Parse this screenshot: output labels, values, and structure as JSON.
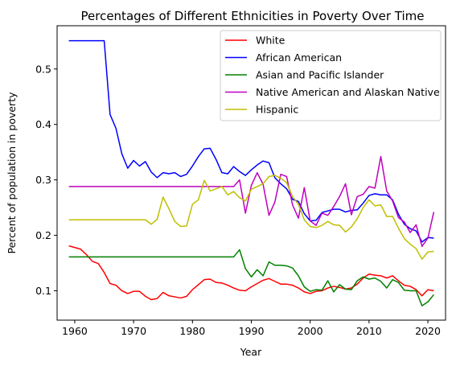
{
  "chart_data": {
    "type": "line",
    "title": "Percentages of Different Ethnicities in Poverty Over Time",
    "xlabel": "Year",
    "ylabel": "Percent of population in poverty",
    "xlim": [
      1957,
      2023
    ],
    "ylim": [
      0.047,
      0.578
    ],
    "xticks": [
      1960,
      1970,
      1980,
      1990,
      2000,
      2010,
      2020
    ],
    "yticks": [
      0.1,
      0.2,
      0.3,
      0.4,
      0.5
    ],
    "grid": false,
    "legend_position": "top-right",
    "series": [
      {
        "name": "White",
        "color": "#ff0000",
        "x": [
          1959,
          1961,
          1962,
          1963,
          1964,
          1965,
          1966,
          1967,
          1968,
          1969,
          1970,
          1971,
          1972,
          1973,
          1974,
          1975,
          1976,
          1977,
          1978,
          1979,
          1980,
          1981,
          1982,
          1983,
          1984,
          1985,
          1986,
          1987,
          1988,
          1989,
          1990,
          1991,
          1992,
          1993,
          1994,
          1995,
          1996,
          1997,
          1998,
          1999,
          2000,
          2001,
          2002,
          2003,
          2004,
          2005,
          2006,
          2007,
          2008,
          2009,
          2010,
          2011,
          2012,
          2013,
          2014,
          2015,
          2016,
          2017,
          2018,
          2019,
          2020,
          2021
        ],
        "y": [
          0.181,
          0.175,
          0.165,
          0.153,
          0.149,
          0.133,
          0.113,
          0.11,
          0.1,
          0.095,
          0.099,
          0.099,
          0.09,
          0.084,
          0.086,
          0.097,
          0.091,
          0.089,
          0.087,
          0.09,
          0.102,
          0.111,
          0.12,
          0.121,
          0.115,
          0.114,
          0.11,
          0.105,
          0.101,
          0.1,
          0.107,
          0.113,
          0.119,
          0.122,
          0.117,
          0.112,
          0.112,
          0.11,
          0.105,
          0.098,
          0.095,
          0.099,
          0.1,
          0.105,
          0.108,
          0.106,
          0.103,
          0.105,
          0.112,
          0.123,
          0.13,
          0.128,
          0.127,
          0.123,
          0.127,
          0.118,
          0.11,
          0.108,
          0.102,
          0.091,
          0.102,
          0.1
        ]
      },
      {
        "name": "African American",
        "color": "#0000ff",
        "x": [
          1959,
          1960,
          1961,
          1962,
          1963,
          1964,
          1965,
          1966,
          1967,
          1968,
          1969,
          1970,
          1971,
          1972,
          1973,
          1974,
          1975,
          1976,
          1977,
          1978,
          1979,
          1980,
          1981,
          1982,
          1983,
          1984,
          1985,
          1986,
          1987,
          1988,
          1989,
          1990,
          1991,
          1992,
          1993,
          1994,
          1995,
          1996,
          1997,
          1998,
          1999,
          2000,
          2001,
          2002,
          2003,
          2004,
          2005,
          2006,
          2007,
          2008,
          2009,
          2010,
          2011,
          2012,
          2013,
          2014,
          2015,
          2016,
          2017,
          2018,
          2019,
          2020,
          2021
        ],
        "y": [
          0.551,
          0.551,
          0.551,
          0.551,
          0.551,
          0.551,
          0.551,
          0.418,
          0.393,
          0.347,
          0.321,
          0.335,
          0.325,
          0.333,
          0.314,
          0.304,
          0.313,
          0.311,
          0.313,
          0.306,
          0.31,
          0.325,
          0.342,
          0.356,
          0.357,
          0.337,
          0.313,
          0.311,
          0.324,
          0.315,
          0.308,
          0.318,
          0.327,
          0.334,
          0.331,
          0.304,
          0.293,
          0.284,
          0.265,
          0.261,
          0.239,
          0.226,
          0.227,
          0.241,
          0.244,
          0.247,
          0.247,
          0.242,
          0.245,
          0.246,
          0.258,
          0.272,
          0.275,
          0.273,
          0.273,
          0.264,
          0.238,
          0.22,
          0.212,
          0.208,
          0.188,
          0.196,
          0.195
        ]
      },
      {
        "name": "Asian and Pacific Islander",
        "color": "#008000",
        "x": [
          1959,
          1987,
          1988,
          1989,
          1990,
          1991,
          1992,
          1993,
          1994,
          1995,
          1996,
          1997,
          1998,
          1999,
          2000,
          2001,
          2002,
          2003,
          2004,
          2005,
          2006,
          2007,
          2008,
          2009,
          2010,
          2011,
          2012,
          2013,
          2014,
          2015,
          2016,
          2017,
          2018,
          2019,
          2020,
          2021
        ],
        "y": [
          0.161,
          0.161,
          0.174,
          0.14,
          0.125,
          0.138,
          0.127,
          0.152,
          0.146,
          0.146,
          0.145,
          0.141,
          0.127,
          0.107,
          0.099,
          0.102,
          0.101,
          0.118,
          0.098,
          0.111,
          0.103,
          0.102,
          0.118,
          0.125,
          0.121,
          0.123,
          0.117,
          0.105,
          0.12,
          0.115,
          0.101,
          0.1,
          0.1,
          0.073,
          0.08,
          0.093
        ]
      },
      {
        "name": "Native American and Alaskan Native",
        "color": "#bf00bf",
        "x": [
          1959,
          1987,
          1988,
          1989,
          1990,
          1991,
          1992,
          1993,
          1994,
          1995,
          1996,
          1997,
          1998,
          1999,
          2000,
          2001,
          2002,
          2003,
          2004,
          2005,
          2006,
          2007,
          2008,
          2009,
          2010,
          2011,
          2012,
          2013,
          2014,
          2015,
          2016,
          2017,
          2018,
          2019,
          2020,
          2021
        ],
        "y": [
          0.288,
          0.288,
          0.3,
          0.24,
          0.29,
          0.313,
          0.292,
          0.236,
          0.26,
          0.31,
          0.306,
          0.255,
          0.231,
          0.286,
          0.226,
          0.218,
          0.24,
          0.236,
          0.252,
          0.27,
          0.293,
          0.237,
          0.27,
          0.274,
          0.288,
          0.285,
          0.342,
          0.28,
          0.262,
          0.232,
          0.224,
          0.205,
          0.219,
          0.18,
          0.195,
          0.242
        ]
      },
      {
        "name": "Hispanic",
        "color": "#bfbf00",
        "x": [
          1959,
          1972,
          1973,
          1974,
          1975,
          1976,
          1977,
          1978,
          1979,
          1980,
          1981,
          1982,
          1983,
          1984,
          1985,
          1986,
          1987,
          1988,
          1989,
          1990,
          1991,
          1992,
          1993,
          1994,
          1995,
          1996,
          1997,
          1998,
          1999,
          2000,
          2001,
          2002,
          2003,
          2004,
          2005,
          2006,
          2007,
          2008,
          2009,
          2010,
          2011,
          2012,
          2013,
          2014,
          2015,
          2016,
          2017,
          2018,
          2019,
          2020,
          2021
        ],
        "y": [
          0.228,
          0.228,
          0.22,
          0.229,
          0.269,
          0.248,
          0.225,
          0.216,
          0.217,
          0.256,
          0.264,
          0.299,
          0.28,
          0.284,
          0.288,
          0.273,
          0.279,
          0.268,
          0.262,
          0.283,
          0.288,
          0.293,
          0.306,
          0.308,
          0.303,
          0.295,
          0.27,
          0.256,
          0.228,
          0.216,
          0.214,
          0.218,
          0.225,
          0.219,
          0.218,
          0.206,
          0.215,
          0.23,
          0.25,
          0.264,
          0.253,
          0.255,
          0.234,
          0.234,
          0.213,
          0.194,
          0.184,
          0.176,
          0.157,
          0.17,
          0.171
        ]
      }
    ]
  }
}
